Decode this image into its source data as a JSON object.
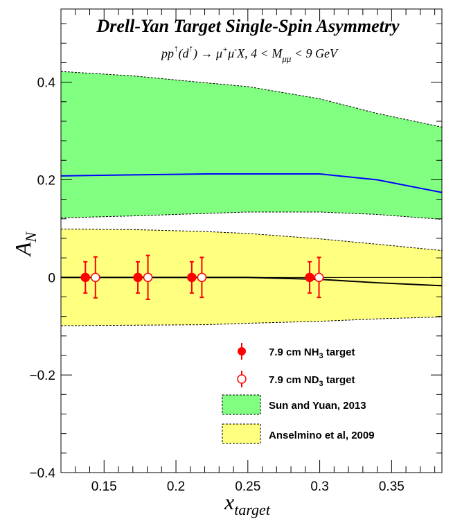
{
  "chart_data": {
    "type": "scatter",
    "title": "Drell-Yan Target Single-Spin Asymmetry",
    "subtitle": {
      "pre": "pp",
      "arrow1": "↑",
      "mid": "(d",
      "arrow2": "↑",
      "post": ") → μ",
      "plus": "+",
      "mu2": "μ",
      "minus": "-",
      "tail": "X, 4 < M",
      "sub": "μμ",
      "end": " < 9 GeV"
    },
    "xlabel": {
      "main": "x",
      "sub": "target"
    },
    "ylabel": {
      "main": "A",
      "sub": "N"
    },
    "xlim": [
      0.12,
      0.385
    ],
    "ylim": [
      -0.4,
      0.55
    ],
    "x_ticks": [
      "0.15",
      "0.2",
      "0.25",
      "0.3",
      "0.35"
    ],
    "x_tick_values": [
      0.15,
      0.2,
      0.25,
      0.3,
      0.35
    ],
    "y_ticks": [
      "−0.4",
      "−0.2",
      "0",
      "0.2",
      "0.4"
    ],
    "y_tick_values": [
      -0.4,
      -0.2,
      0,
      0.2,
      0.4
    ],
    "series": [
      {
        "name": "7.9 cm NH3 target",
        "label_parts": [
          "7.9 cm NH",
          "3",
          " target"
        ],
        "marker": "filled-circle",
        "color": "#ff0000",
        "x": [
          0.137,
          0.1735,
          0.211,
          0.293
        ],
        "y": [
          0,
          0,
          0,
          0
        ],
        "err": [
          0.032,
          0.032,
          0.032,
          0.032
        ]
      },
      {
        "name": "7.9 cm ND3 target",
        "label_parts": [
          "7.9 cm ND",
          "3",
          " target"
        ],
        "marker": "open-circle",
        "color": "#ff0000",
        "x": [
          0.144,
          0.1805,
          0.218,
          0.2995
        ],
        "y": [
          0,
          0,
          0,
          0
        ],
        "err": [
          0.042,
          0.045,
          0.041,
          0.041
        ]
      }
    ],
    "bands": [
      {
        "name": "Sun and Yuan, 2013",
        "color": "#80ff80",
        "x": [
          0.12,
          0.17,
          0.22,
          0.25,
          0.3,
          0.34,
          0.385
        ],
        "upper": [
          0.422,
          0.413,
          0.399,
          0.391,
          0.366,
          0.336,
          0.308
        ],
        "lower": [
          0.122,
          0.126,
          0.131,
          0.134,
          0.134,
          0.129,
          0.119
        ],
        "central": [
          0.208,
          0.21,
          0.212,
          0.212,
          0.212,
          0.2,
          0.174
        ],
        "central_color": "#0000ff"
      },
      {
        "name": "Anselmino et al, 2009",
        "color": "#ffff80",
        "x": [
          0.12,
          0.17,
          0.22,
          0.25,
          0.3,
          0.34,
          0.385
        ],
        "upper": [
          0.099,
          0.098,
          0.094,
          0.09,
          0.079,
          0.068,
          0.055
        ],
        "lower": [
          -0.099,
          -0.098,
          -0.097,
          -0.094,
          -0.09,
          -0.085,
          -0.081
        ],
        "central": [
          0,
          0,
          0,
          0,
          -0.004,
          -0.011,
          -0.017
        ],
        "central_color": "#000000"
      }
    ],
    "legend_position": "bottom-right",
    "grid": false
  }
}
